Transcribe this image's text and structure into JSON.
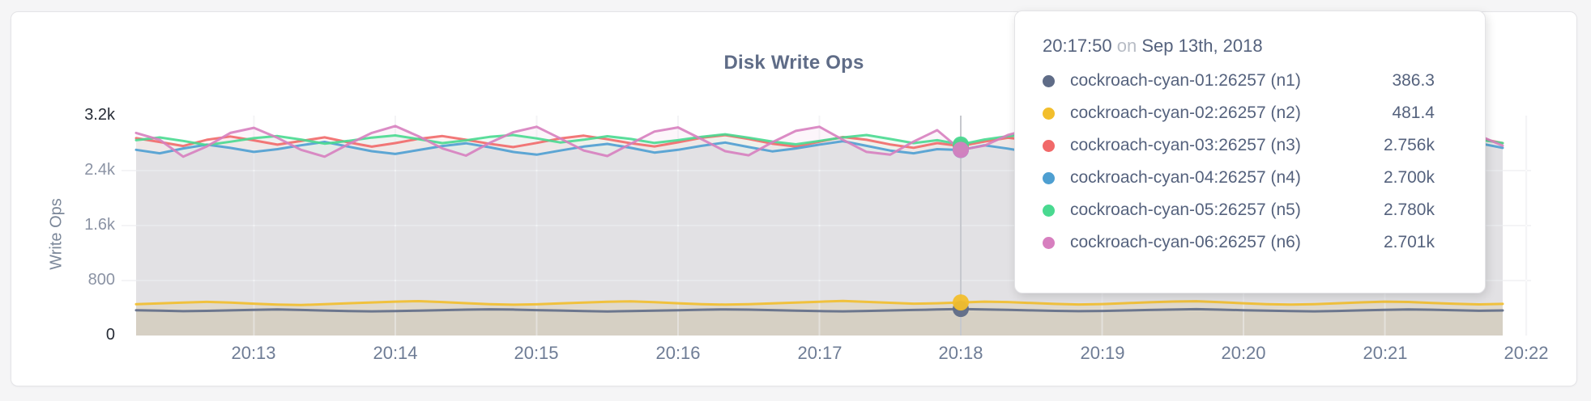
{
  "panel": {
    "title": "Disk Write Ops"
  },
  "tooltip": {
    "time": "20:17:50",
    "conjunction": "on",
    "date": "Sep 13th, 2018",
    "rows": [
      {
        "label": "cockroach-cyan-01:26257 (n1)",
        "value": "386.3",
        "color": "#5F6C87"
      },
      {
        "label": "cockroach-cyan-02:26257 (n2)",
        "value": "481.4",
        "color": "#F2BE2C"
      },
      {
        "label": "cockroach-cyan-03:26257 (n3)",
        "value": "2.756k",
        "color": "#F16969"
      },
      {
        "label": "cockroach-cyan-04:26257 (n4)",
        "value": "2.700k",
        "color": "#4E9FD1"
      },
      {
        "label": "cockroach-cyan-05:26257 (n5)",
        "value": "2.780k",
        "color": "#49D990"
      },
      {
        "label": "cockroach-cyan-06:26257 (n6)",
        "value": "2.701k",
        "color": "#D77FBF"
      }
    ]
  },
  "chart_data": {
    "type": "line",
    "title": "Disk Write Ops",
    "xlabel": "",
    "ylabel": "Write Ops",
    "ylim": [
      0,
      3200
    ],
    "grid": true,
    "legend_position": "tooltip",
    "x_start": "20:12:10",
    "x_end": "20:21:50",
    "x_step_seconds": 10,
    "x_tick_labels": [
      "20:13",
      "20:14",
      "20:15",
      "20:16",
      "20:17",
      "20:18",
      "20:19",
      "20:20",
      "20:21",
      "20:22"
    ],
    "y_ticks": [
      0,
      800,
      1600,
      2400,
      3200
    ],
    "y_tick_labels": [
      "0",
      "800",
      "1.6k",
      "2.4k",
      "3.2k"
    ],
    "hover_index": 35,
    "hover_time": "20:17:50",
    "series": [
      {
        "name": "cockroach-cyan-01:26257 (n1)",
        "color": "#5F6C87",
        "fill_opacity": 0.1,
        "values": [
          368,
          361,
          354,
          359,
          366,
          373,
          379,
          372,
          364,
          357,
          352,
          356,
          362,
          369,
          376,
          381,
          378,
          370,
          363,
          356,
          351,
          355,
          361,
          368,
          375,
          380,
          377,
          369,
          362,
          355,
          352,
          358,
          365,
          372,
          379,
          386.3,
          380,
          373,
          366,
          359,
          354,
          358,
          365,
          372,
          378,
          383,
          376,
          368,
          361,
          356,
          352,
          358,
          366,
          373,
          380,
          375,
          367,
          360,
          365
        ]
      },
      {
        "name": "cockroach-cyan-02:26257 (n2)",
        "color": "#F2BE2C",
        "fill_opacity": 0.16,
        "values": [
          455,
          468,
          480,
          490,
          479,
          464,
          451,
          444,
          456,
          469,
          481,
          493,
          500,
          487,
          471,
          457,
          448,
          454,
          467,
          480,
          491,
          498,
          486,
          470,
          457,
          449,
          455,
          468,
          480,
          492,
          502,
          490,
          476,
          463,
          470,
          481.4,
          493,
          487,
          473,
          460,
          452,
          458,
          471,
          483,
          494,
          499,
          485,
          469,
          456,
          450,
          457,
          470,
          482,
          493,
          488,
          474,
          461,
          453,
          460
        ]
      },
      {
        "name": "cockroach-cyan-03:26257 (n3)",
        "color": "#F16969",
        "fill_opacity": 0.08,
        "values": [
          2872,
          2816,
          2758,
          2848,
          2896,
          2840,
          2778,
          2830,
          2884,
          2812,
          2748,
          2800,
          2862,
          2902,
          2848,
          2790,
          2742,
          2802,
          2868,
          2908,
          2856,
          2798,
          2752,
          2812,
          2878,
          2916,
          2860,
          2792,
          2750,
          2820,
          2888,
          2848,
          2780,
          2732,
          2800,
          2756,
          2822,
          2878,
          2840,
          2772,
          2812,
          2868,
          2898,
          2830,
          2760,
          2802,
          2858,
          2888,
          2820,
          2752,
          2792,
          2850,
          2878,
          2810,
          2742,
          2782,
          2840,
          2868,
          2800
        ]
      },
      {
        "name": "cockroach-cyan-04:26257 (n4)",
        "color": "#4E9FD1",
        "fill_opacity": 0.08,
        "values": [
          2702,
          2652,
          2722,
          2778,
          2730,
          2672,
          2712,
          2768,
          2818,
          2750,
          2682,
          2642,
          2700,
          2758,
          2798,
          2740,
          2672,
          2632,
          2692,
          2750,
          2788,
          2730,
          2662,
          2702,
          2760,
          2808,
          2742,
          2680,
          2722,
          2778,
          2828,
          2760,
          2692,
          2652,
          2712,
          2700,
          2768,
          2720,
          2662,
          2702,
          2752,
          2798,
          2732,
          2672,
          2710,
          2762,
          2808,
          2750,
          2682,
          2642,
          2702,
          2752,
          2790,
          2722,
          2662,
          2700,
          2760,
          2798,
          2730
        ]
      },
      {
        "name": "cockroach-cyan-05:26257 (n5)",
        "color": "#49D990",
        "fill_opacity": 0.08,
        "values": [
          2842,
          2882,
          2832,
          2772,
          2820,
          2872,
          2902,
          2852,
          2792,
          2832,
          2880,
          2912,
          2858,
          2800,
          2840,
          2890,
          2918,
          2868,
          2810,
          2850,
          2900,
          2860,
          2802,
          2842,
          2892,
          2928,
          2878,
          2822,
          2782,
          2832,
          2882,
          2918,
          2860,
          2800,
          2842,
          2780,
          2852,
          2900,
          2930,
          2870,
          2820,
          2860,
          2908,
          2868,
          2810,
          2850,
          2898,
          2938,
          2878,
          2830,
          2870,
          2908,
          2858,
          2800,
          2840,
          2888,
          2918,
          2852,
          2800
        ]
      },
      {
        "name": "cockroach-cyan-06:26257 (n6)",
        "color": "#D77FBF",
        "fill_opacity": 0.08,
        "values": [
          2948,
          2848,
          2602,
          2752,
          2948,
          3022,
          2878,
          2702,
          2602,
          2782,
          2948,
          3048,
          2898,
          2722,
          2618,
          2802,
          2958,
          3038,
          2868,
          2692,
          2612,
          2792,
          2968,
          3028,
          2858,
          2682,
          2622,
          2812,
          2978,
          3038,
          2848,
          2672,
          2632,
          2822,
          2988,
          2701,
          2762,
          2918,
          3008,
          2838,
          2662,
          2702,
          2878,
          2998,
          2828,
          2652,
          2712,
          2888,
          3008,
          2818,
          2642,
          2722,
          2898,
          3018,
          2808,
          2632,
          2732,
          2908,
          2762
        ]
      }
    ],
    "colors": {
      "accent_text": "#5f6c87",
      "grid_line": "#e8e8ec",
      "guideline": "#c6c8cd",
      "page_background": "#f5f5f6",
      "panel_background": "#ffffff"
    }
  }
}
